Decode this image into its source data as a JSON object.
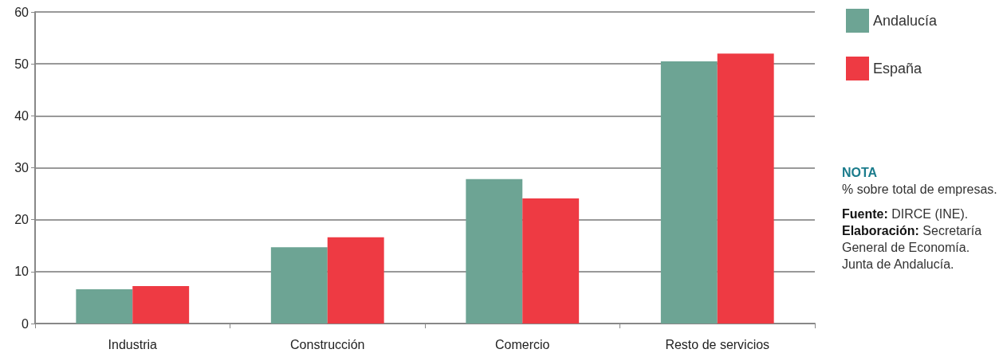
{
  "chart_data": {
    "type": "bar",
    "categories": [
      "Industria",
      "Construcción",
      "Comercio",
      "Resto de servicios"
    ],
    "series": [
      {
        "name": "Andalucía",
        "color": "#6da494",
        "values": [
          6.6,
          14.7,
          27.8,
          50.5
        ]
      },
      {
        "name": "España",
        "color": "#ee3a43",
        "values": [
          7.2,
          16.6,
          24.1,
          52.0
        ]
      }
    ],
    "ylim": [
      0,
      60
    ],
    "yticks": [
      0,
      10,
      20,
      30,
      40,
      50,
      60
    ],
    "grid": "y",
    "legend": "right",
    "annotations": [
      "NOTA",
      "% sobre total de empresas.",
      "Fuente: DIRCE (INE).",
      "Elaboración: Secretaría General de Economía. Junta de Andalucía."
    ]
  }
}
